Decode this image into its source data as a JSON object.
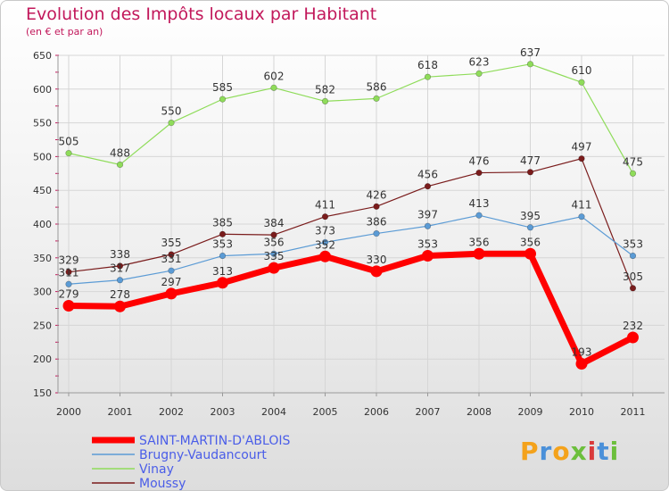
{
  "header": {
    "title": "Evolution des Impôts locaux par Habitant",
    "subtitle": "(en € et par an)"
  },
  "logo_text": "Proxiti",
  "colors": {
    "title": "#c2185b",
    "legend_text": "#4a5de8"
  },
  "chart_data": {
    "type": "line",
    "title": "Evolution des Impôts locaux par Habitant",
    "subtitle": "(en € et par an)",
    "xlabel": "",
    "ylabel": "",
    "ylim": [
      150,
      650
    ],
    "yticks": [
      150,
      200,
      250,
      300,
      350,
      400,
      450,
      500,
      550,
      600,
      650
    ],
    "grid": true,
    "legend": "bottom-left",
    "categories": [
      "2000",
      "2001",
      "2002",
      "2003",
      "2004",
      "2005",
      "2006",
      "2007",
      "2008",
      "2009",
      "2010",
      "2011"
    ],
    "series": [
      {
        "name": "SAINT-MARTIN-D'ABLOIS",
        "color": "#ff0000",
        "values": [
          279,
          278,
          297,
          313,
          335,
          352,
          330,
          353,
          356,
          356,
          193,
          232
        ]
      },
      {
        "name": "Brugny-Vaudancourt",
        "color": "#5b9bd5",
        "values": [
          311,
          317,
          331,
          353,
          356,
          373,
          386,
          397,
          413,
          395,
          411,
          353
        ]
      },
      {
        "name": "Vinay",
        "color": "#8fdc5a",
        "values": [
          505,
          488,
          550,
          585,
          602,
          582,
          586,
          618,
          623,
          637,
          610,
          475
        ]
      },
      {
        "name": "Moussy",
        "color": "#7a1c1c",
        "values": [
          329,
          338,
          355,
          385,
          384,
          411,
          426,
          456,
          476,
          477,
          497,
          305
        ]
      }
    ]
  }
}
